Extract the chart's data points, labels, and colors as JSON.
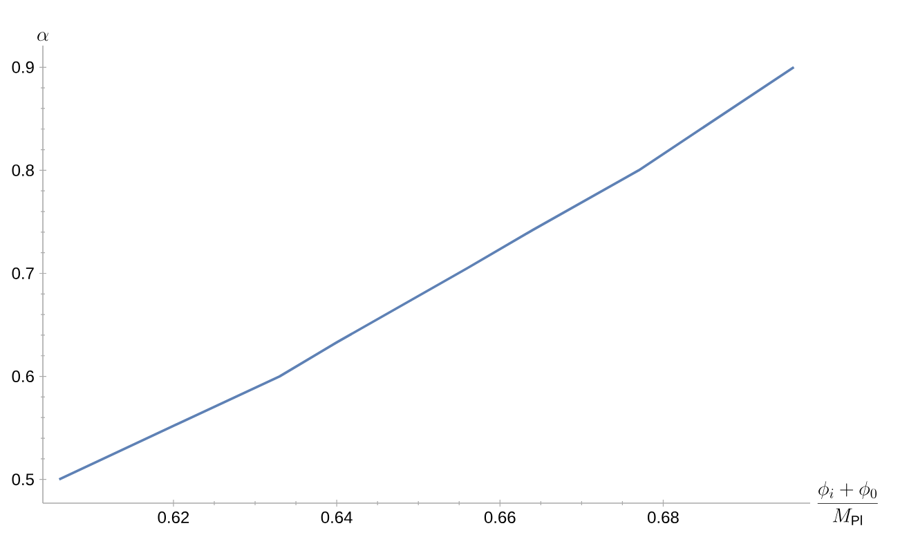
{
  "chart_data": {
    "type": "line",
    "xlabel": "\\frac{\\phi_i+\\phi_0}{M_{\\mathrm{Pl}}}",
    "ylabel": "\\alpha",
    "x": [
      0.606,
      0.62,
      0.633,
      0.64,
      0.656,
      0.664,
      0.677,
      0.696
    ],
    "values": [
      0.5,
      0.552,
      0.6,
      0.633,
      0.705,
      0.742,
      0.8,
      0.9
    ],
    "color": "#5e81b5",
    "xlim": [
      0.604,
      0.698
    ],
    "ylim": [
      0.477,
      0.921
    ],
    "xticks": [
      0.62,
      0.64,
      0.66,
      0.68
    ],
    "yticks": [
      0.5,
      0.6,
      0.7,
      0.8,
      0.9
    ],
    "grid": false,
    "marker": "none",
    "line_style": "solid"
  }
}
